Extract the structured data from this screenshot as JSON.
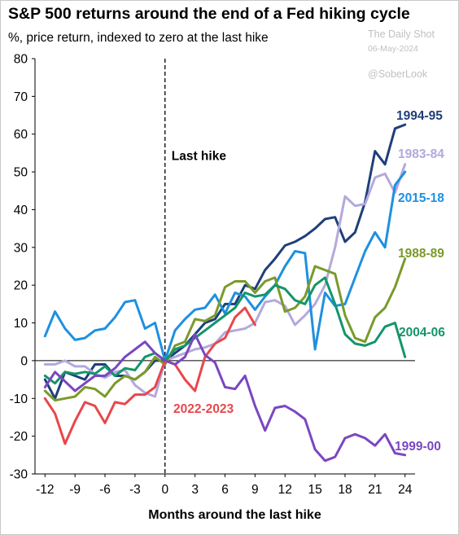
{
  "title": "S&P 500 returns around the end of a Fed hiking cycle",
  "subtitle": "%, price return, indexed to zero at the last hike",
  "watermark": {
    "source": "The Daily Shot",
    "date": "06-May-2024",
    "handle": "@SoberLook"
  },
  "chart_data": {
    "type": "line",
    "xlabel": "Months around the last hike",
    "ylabel": "",
    "xlim": [
      -13,
      25
    ],
    "ylim": [
      -30,
      80
    ],
    "x_ticks": [
      -12,
      -9,
      -6,
      -3,
      0,
      3,
      6,
      9,
      12,
      15,
      18,
      21,
      24
    ],
    "y_ticks": [
      -30,
      -20,
      -10,
      0,
      10,
      20,
      30,
      40,
      50,
      60,
      70,
      80
    ],
    "grid": false,
    "annotation": {
      "text": "Last hike",
      "x": 0
    },
    "series": [
      {
        "name": "1994-95",
        "color": "#1f3f7a",
        "x": [
          -12,
          -11,
          -10,
          -9,
          -8,
          -7,
          -6,
          -5,
          -4,
          -3,
          -2,
          -1,
          0,
          1,
          2,
          3,
          4,
          5,
          6,
          7,
          8,
          9,
          10,
          11,
          12,
          13,
          14,
          15,
          16,
          17,
          18,
          19,
          20,
          21,
          22,
          23,
          24
        ],
        "y": [
          -5,
          -10,
          -3,
          -4,
          -5,
          -1,
          -1,
          -4,
          -4,
          -5,
          -3,
          0,
          0,
          2,
          4,
          7,
          10,
          11,
          15,
          15,
          20,
          19,
          24,
          27,
          30.5,
          31.5,
          33,
          35,
          37.5,
          38,
          31.5,
          34,
          42,
          55.5,
          52,
          61.5,
          62.5
        ]
      },
      {
        "name": "1983-84",
        "color": "#b3a9dc",
        "x": [
          -12,
          -11,
          -10,
          -9,
          -8,
          -7,
          -6,
          -5,
          -4,
          -3,
          -2,
          -1,
          0,
          1,
          2,
          3,
          4,
          5,
          6,
          7,
          8,
          9,
          10,
          11,
          12,
          13,
          14,
          15,
          16,
          17,
          18,
          19,
          20,
          21,
          22,
          23,
          24
        ],
        "y": [
          -1,
          -1,
          0,
          -1.5,
          -1.5,
          -3.5,
          -4.5,
          -3,
          -2.5,
          -6.5,
          -8.5,
          -9.5,
          0,
          1,
          2,
          3,
          3.5,
          4.5,
          7.5,
          8,
          8.5,
          10,
          15.5,
          16,
          14.5,
          9.5,
          12,
          15,
          20,
          30,
          43.5,
          41,
          41.5,
          48.5,
          49.5,
          44.5,
          52
        ]
      },
      {
        "name": "2015-18",
        "color": "#1e90e0",
        "x": [
          -12,
          -11,
          -10,
          -9,
          -8,
          -7,
          -6,
          -5,
          -4,
          -3,
          -2,
          -1,
          0,
          1,
          2,
          3,
          4,
          5,
          6,
          7,
          8,
          9,
          10,
          11,
          12,
          13,
          14,
          15,
          16,
          17,
          18,
          19,
          20,
          21,
          22,
          23,
          24
        ],
        "y": [
          6.5,
          13,
          8.5,
          5.5,
          6,
          8,
          8.5,
          11.5,
          15.5,
          16,
          8.5,
          10,
          0,
          8,
          11,
          13.5,
          14,
          17.5,
          12.5,
          18,
          17,
          13.5,
          17,
          20,
          25,
          29,
          28.5,
          3,
          18,
          14.5,
          15,
          22,
          29,
          34,
          30,
          46.5,
          50
        ]
      },
      {
        "name": "1988-89",
        "color": "#7a9a2a",
        "x": [
          -12,
          -11,
          -10,
          -9,
          -8,
          -7,
          -6,
          -5,
          -4,
          -3,
          -2,
          -1,
          0,
          1,
          2,
          3,
          4,
          5,
          6,
          7,
          8,
          9,
          10,
          11,
          12,
          13,
          14,
          15,
          16,
          17,
          18,
          19,
          20,
          21,
          22,
          23,
          24
        ],
        "y": [
          -8,
          -10.5,
          -10,
          -9.5,
          -7,
          -7.5,
          -9.5,
          -6,
          -4,
          -5,
          -3,
          1,
          -1,
          4,
          5,
          11,
          10.5,
          12,
          19.5,
          21,
          21,
          18,
          21,
          22,
          13,
          14,
          17,
          25,
          24,
          23,
          12,
          6,
          5,
          11.5,
          14,
          19.5,
          27
        ]
      },
      {
        "name": "2004-06",
        "color": "#14956a",
        "x": [
          -12,
          -11,
          -10,
          -9,
          -8,
          -7,
          -6,
          -5,
          -4,
          -3,
          -2,
          -1,
          0,
          1,
          2,
          3,
          4,
          5,
          6,
          7,
          8,
          9,
          10,
          11,
          12,
          13,
          14,
          15,
          16,
          17,
          18,
          19,
          20,
          21,
          22,
          23,
          24
        ],
        "y": [
          -4,
          -6,
          -3,
          -3.5,
          -3,
          -3.5,
          -1.5,
          -4,
          -2,
          -2.5,
          1,
          2,
          0,
          3,
          4,
          6,
          8,
          10,
          12,
          14,
          18,
          17,
          17.5,
          20,
          19,
          16,
          15,
          20,
          22,
          15,
          7,
          4.5,
          4,
          5,
          9,
          10,
          1
        ]
      },
      {
        "name": "2022-2023",
        "color": "#e8474b",
        "x": [
          -12,
          -11,
          -10,
          -9,
          -8,
          -7,
          -6,
          -5,
          -4,
          -3,
          -2,
          -1,
          0,
          1,
          2,
          3,
          4,
          5,
          6,
          7,
          8,
          9
        ],
        "y": [
          -10,
          -14,
          -22,
          -16,
          -11,
          -12,
          -16.5,
          -11,
          -11.5,
          -9,
          -9,
          -7,
          0,
          -1,
          -5,
          -8,
          1,
          4.5,
          6,
          11.5,
          14,
          9.5
        ]
      },
      {
        "name": "1999-00",
        "color": "#7a47c0",
        "x": [
          -12,
          -11,
          -10,
          -9,
          -8,
          -7,
          -6,
          -5,
          -4,
          -3,
          -2,
          -1,
          0,
          1,
          2,
          3,
          4,
          5,
          6,
          7,
          8,
          9,
          10,
          11,
          12,
          13,
          14,
          15,
          16,
          17,
          18,
          19,
          20,
          21,
          22,
          23,
          24
        ],
        "y": [
          -7,
          -3,
          -5.5,
          -8,
          -6,
          -4,
          -4,
          -2,
          1,
          3,
          5,
          2,
          0,
          -1,
          1,
          7,
          1.5,
          -0.5,
          -7,
          -7.5,
          -4,
          -12,
          -18.5,
          -12.5,
          -12,
          -13.5,
          -15.5,
          -23.5,
          -26.5,
          -25.5,
          -20.5,
          -19.5,
          -20.5,
          -22.5,
          -19.5,
          -24.5,
          -25
        ]
      }
    ]
  }
}
